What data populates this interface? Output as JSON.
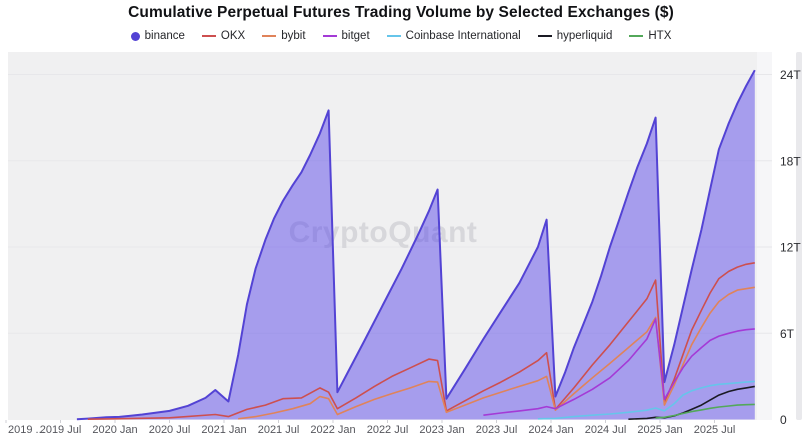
{
  "title": "Cumulative Perpetual Futures Trading Volume by Selected Exchanges ($)",
  "watermark": "CryptoQuant",
  "chart_data": {
    "type": "area",
    "title": "Cumulative Perpetual Futures Trading Volume by Selected Exchanges ($)",
    "xlabel": "",
    "ylabel": "",
    "unit": "T",
    "grid": true,
    "legend_position": "top",
    "watermark": "CryptoQuant",
    "x_range": [
      2019.0,
      2026.0
    ],
    "y_range": [
      0,
      25.5
    ],
    "y_ticks": [
      {
        "v": 0,
        "label": "0"
      },
      {
        "v": 6,
        "label": "6T"
      },
      {
        "v": 12,
        "label": "12T"
      },
      {
        "v": 18,
        "label": "18T"
      },
      {
        "v": 24,
        "label": "24T"
      }
    ],
    "x_ticks": [
      {
        "t": 2019.0,
        "label": "2019 ..."
      },
      {
        "t": 2019.5,
        "label": "2019 Jul"
      },
      {
        "t": 2020.0,
        "label": "2020 Jan"
      },
      {
        "t": 2020.5,
        "label": "2020 Jul"
      },
      {
        "t": 2021.0,
        "label": "2021 Jan"
      },
      {
        "t": 2021.5,
        "label": "2021 Jul"
      },
      {
        "t": 2022.0,
        "label": "2022 Jan"
      },
      {
        "t": 2022.5,
        "label": "2022 Jul"
      },
      {
        "t": 2023.0,
        "label": "2023 Jan"
      },
      {
        "t": 2023.5,
        "label": "2023 Jul"
      },
      {
        "t": 2024.0,
        "label": "2024 Jan"
      },
      {
        "t": 2024.5,
        "label": "2024 Jul"
      },
      {
        "t": 2025.0,
        "label": "2025 Jan"
      },
      {
        "t": 2025.5,
        "label": "2025 Jul"
      }
    ],
    "series": [
      {
        "name": "binance",
        "type": "area",
        "marker": "circle",
        "color": "#5343d4",
        "fill": "#5c4ae9",
        "fill_opacity": 0.5,
        "points": [
          [
            2019.65,
            0.02
          ],
          [
            2019.75,
            0.06
          ],
          [
            2019.92,
            0.15
          ],
          [
            2020.04,
            0.18
          ],
          [
            2020.25,
            0.35
          ],
          [
            2020.5,
            0.6
          ],
          [
            2020.67,
            0.95
          ],
          [
            2020.83,
            1.5
          ],
          [
            2020.92,
            2.05
          ],
          [
            2021.04,
            1.25
          ],
          [
            2021.13,
            4.5
          ],
          [
            2021.21,
            8.0
          ],
          [
            2021.29,
            10.5
          ],
          [
            2021.38,
            12.5
          ],
          [
            2021.46,
            14.0
          ],
          [
            2021.54,
            15.2
          ],
          [
            2021.63,
            16.3
          ],
          [
            2021.71,
            17.2
          ],
          [
            2021.79,
            18.4
          ],
          [
            2021.88,
            19.9
          ],
          [
            2021.96,
            21.5
          ],
          [
            2022.04,
            1.9
          ],
          [
            2022.13,
            3.2
          ],
          [
            2022.29,
            5.5
          ],
          [
            2022.46,
            8.0
          ],
          [
            2022.63,
            10.5
          ],
          [
            2022.79,
            13.0
          ],
          [
            2022.88,
            14.5
          ],
          [
            2022.96,
            16.0
          ],
          [
            2023.04,
            1.45
          ],
          [
            2023.21,
            3.5
          ],
          [
            2023.38,
            5.6
          ],
          [
            2023.54,
            7.5
          ],
          [
            2023.71,
            9.5
          ],
          [
            2023.88,
            12.0
          ],
          [
            2023.96,
            13.9
          ],
          [
            2024.04,
            1.6
          ],
          [
            2024.13,
            3.3
          ],
          [
            2024.21,
            5.0
          ],
          [
            2024.29,
            6.5
          ],
          [
            2024.38,
            8.2
          ],
          [
            2024.46,
            10.0
          ],
          [
            2024.54,
            12.0
          ],
          [
            2024.63,
            14.0
          ],
          [
            2024.71,
            15.8
          ],
          [
            2024.79,
            17.5
          ],
          [
            2024.88,
            19.2
          ],
          [
            2024.96,
            21.0
          ],
          [
            2025.04,
            2.6
          ],
          [
            2025.13,
            5.2
          ],
          [
            2025.21,
            7.8
          ],
          [
            2025.29,
            10.4
          ],
          [
            2025.38,
            13.2
          ],
          [
            2025.46,
            16.0
          ],
          [
            2025.54,
            18.8
          ],
          [
            2025.63,
            20.6
          ],
          [
            2025.71,
            22.0
          ],
          [
            2025.79,
            23.2
          ],
          [
            2025.87,
            24.3
          ]
        ]
      },
      {
        "name": "OKX",
        "type": "line",
        "marker": "line",
        "color": "#cd4f4f",
        "points": [
          [
            2019.75,
            0.02
          ],
          [
            2020.0,
            0.05
          ],
          [
            2020.5,
            0.12
          ],
          [
            2020.92,
            0.35
          ],
          [
            2021.04,
            0.2
          ],
          [
            2021.21,
            0.7
          ],
          [
            2021.38,
            1.0
          ],
          [
            2021.54,
            1.45
          ],
          [
            2021.71,
            1.5
          ],
          [
            2021.88,
            2.2
          ],
          [
            2021.96,
            1.9
          ],
          [
            2022.04,
            0.75
          ],
          [
            2022.21,
            1.5
          ],
          [
            2022.38,
            2.3
          ],
          [
            2022.54,
            3.0
          ],
          [
            2022.71,
            3.6
          ],
          [
            2022.88,
            4.2
          ],
          [
            2022.96,
            4.1
          ],
          [
            2023.04,
            0.6
          ],
          [
            2023.21,
            1.3
          ],
          [
            2023.38,
            2.0
          ],
          [
            2023.54,
            2.6
          ],
          [
            2023.71,
            3.3
          ],
          [
            2023.88,
            4.1
          ],
          [
            2023.96,
            4.65
          ],
          [
            2024.04,
            0.7
          ],
          [
            2024.21,
            2.2
          ],
          [
            2024.38,
            3.8
          ],
          [
            2024.54,
            5.2
          ],
          [
            2024.71,
            6.8
          ],
          [
            2024.88,
            8.4
          ],
          [
            2024.96,
            9.7
          ],
          [
            2025.04,
            1.2
          ],
          [
            2025.13,
            2.8
          ],
          [
            2025.21,
            4.5
          ],
          [
            2025.29,
            6.2
          ],
          [
            2025.38,
            7.6
          ],
          [
            2025.46,
            8.8
          ],
          [
            2025.54,
            9.8
          ],
          [
            2025.63,
            10.3
          ],
          [
            2025.71,
            10.6
          ],
          [
            2025.79,
            10.8
          ],
          [
            2025.87,
            10.9
          ]
        ]
      },
      {
        "name": "bybit",
        "type": "line",
        "marker": "line",
        "color": "#e0835a",
        "points": [
          [
            2021.13,
            0.05
          ],
          [
            2021.29,
            0.2
          ],
          [
            2021.46,
            0.45
          ],
          [
            2021.63,
            0.75
          ],
          [
            2021.79,
            1.1
          ],
          [
            2021.88,
            1.6
          ],
          [
            2021.96,
            1.45
          ],
          [
            2022.04,
            0.35
          ],
          [
            2022.21,
            0.9
          ],
          [
            2022.38,
            1.4
          ],
          [
            2022.54,
            1.8
          ],
          [
            2022.71,
            2.2
          ],
          [
            2022.88,
            2.65
          ],
          [
            2022.96,
            2.6
          ],
          [
            2023.04,
            0.5
          ],
          [
            2023.21,
            1.0
          ],
          [
            2023.38,
            1.5
          ],
          [
            2023.54,
            1.9
          ],
          [
            2023.71,
            2.3
          ],
          [
            2023.88,
            2.7
          ],
          [
            2023.96,
            3.0
          ],
          [
            2024.04,
            0.65
          ],
          [
            2024.21,
            1.8
          ],
          [
            2024.38,
            2.9
          ],
          [
            2024.54,
            3.9
          ],
          [
            2024.71,
            5.0
          ],
          [
            2024.88,
            6.1
          ],
          [
            2024.96,
            7.1
          ],
          [
            2025.04,
            1.0
          ],
          [
            2025.13,
            2.4
          ],
          [
            2025.21,
            3.8
          ],
          [
            2025.29,
            5.2
          ],
          [
            2025.38,
            6.4
          ],
          [
            2025.46,
            7.4
          ],
          [
            2025.54,
            8.2
          ],
          [
            2025.63,
            8.7
          ],
          [
            2025.71,
            9.0
          ],
          [
            2025.79,
            9.1
          ],
          [
            2025.87,
            9.2
          ]
        ]
      },
      {
        "name": "bitget",
        "type": "line",
        "marker": "line",
        "color": "#a43ad6",
        "points": [
          [
            2023.38,
            0.3
          ],
          [
            2023.54,
            0.45
          ],
          [
            2023.71,
            0.6
          ],
          [
            2023.88,
            0.75
          ],
          [
            2023.96,
            0.9
          ],
          [
            2024.04,
            0.75
          ],
          [
            2024.21,
            1.4
          ],
          [
            2024.38,
            2.1
          ],
          [
            2024.54,
            2.9
          ],
          [
            2024.71,
            4.1
          ],
          [
            2024.88,
            5.6
          ],
          [
            2024.96,
            7.0
          ],
          [
            2025.04,
            1.4
          ],
          [
            2025.13,
            2.6
          ],
          [
            2025.21,
            3.6
          ],
          [
            2025.29,
            4.4
          ],
          [
            2025.38,
            5.0
          ],
          [
            2025.46,
            5.5
          ],
          [
            2025.54,
            5.8
          ],
          [
            2025.63,
            6.0
          ],
          [
            2025.71,
            6.15
          ],
          [
            2025.79,
            6.25
          ],
          [
            2025.87,
            6.3
          ]
        ]
      },
      {
        "name": "Coinbase International",
        "type": "line",
        "marker": "line",
        "color": "#66c5ea",
        "points": [
          [
            2023.88,
            0.05
          ],
          [
            2024.04,
            0.08
          ],
          [
            2024.21,
            0.2
          ],
          [
            2024.38,
            0.3
          ],
          [
            2024.54,
            0.38
          ],
          [
            2024.71,
            0.5
          ],
          [
            2024.88,
            0.65
          ],
          [
            2024.96,
            0.8
          ],
          [
            2025.04,
            0.6
          ],
          [
            2025.13,
            1.1
          ],
          [
            2025.21,
            1.7
          ],
          [
            2025.29,
            2.0
          ],
          [
            2025.38,
            2.2
          ],
          [
            2025.46,
            2.35
          ],
          [
            2025.54,
            2.45
          ],
          [
            2025.63,
            2.5
          ],
          [
            2025.71,
            2.55
          ],
          [
            2025.79,
            2.6
          ],
          [
            2025.87,
            2.65
          ]
        ]
      },
      {
        "name": "hyperliquid",
        "type": "line",
        "marker": "line",
        "color": "#1a1a24",
        "points": [
          [
            2024.71,
            0.02
          ],
          [
            2024.88,
            0.08
          ],
          [
            2024.96,
            0.15
          ],
          [
            2025.04,
            0.12
          ],
          [
            2025.13,
            0.25
          ],
          [
            2025.21,
            0.45
          ],
          [
            2025.29,
            0.7
          ],
          [
            2025.38,
            1.0
          ],
          [
            2025.46,
            1.35
          ],
          [
            2025.54,
            1.7
          ],
          [
            2025.63,
            1.95
          ],
          [
            2025.71,
            2.1
          ],
          [
            2025.79,
            2.2
          ],
          [
            2025.87,
            2.3
          ]
        ]
      },
      {
        "name": "HTX",
        "type": "line",
        "marker": "line",
        "color": "#53a85a",
        "points": [
          [
            2024.96,
            0.1
          ],
          [
            2025.04,
            0.15
          ],
          [
            2025.13,
            0.28
          ],
          [
            2025.21,
            0.42
          ],
          [
            2025.29,
            0.55
          ],
          [
            2025.38,
            0.67
          ],
          [
            2025.46,
            0.78
          ],
          [
            2025.54,
            0.87
          ],
          [
            2025.63,
            0.94
          ],
          [
            2025.71,
            1.0
          ],
          [
            2025.79,
            1.03
          ],
          [
            2025.87,
            1.05
          ]
        ]
      }
    ]
  },
  "colors": {
    "plot_bg": "#f0f0f1",
    "plot_bg_right_pad": "#f6f6f8",
    "right_edge_bar": "#e9e9ec",
    "gridline": "#e7e7ea",
    "tick_mark": "#cfcfd4"
  }
}
